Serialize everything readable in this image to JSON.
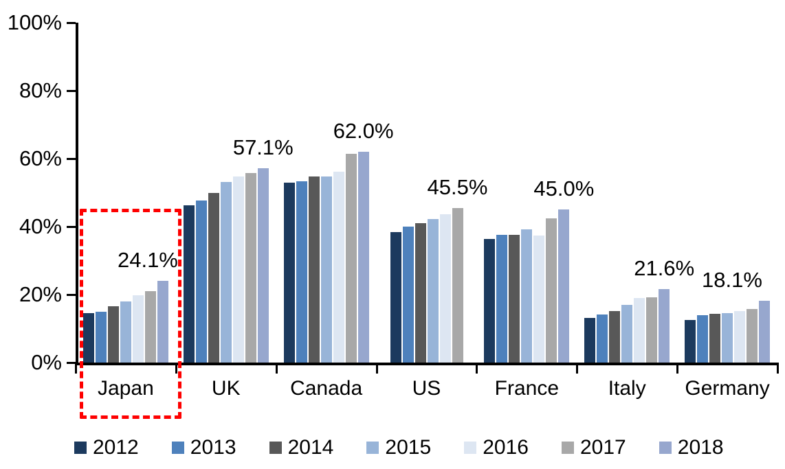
{
  "chart_data": {
    "type": "bar",
    "title": "",
    "xlabel": "",
    "ylabel": "",
    "ylim": [
      0,
      100
    ],
    "y_ticks": [
      "0%",
      "20%",
      "40%",
      "60%",
      "80%",
      "100%"
    ],
    "grid": false,
    "legend_position": "bottom",
    "categories": [
      "Japan",
      "UK",
      "Canada",
      "US",
      "France",
      "Italy",
      "Germany"
    ],
    "series": [
      {
        "name": "2012",
        "color": "#1C3A5E",
        "values": [
          14.6,
          46.2,
          53.0,
          38.4,
          36.4,
          13.2,
          12.5
        ]
      },
      {
        "name": "2013",
        "color": "#4E81BC",
        "values": [
          14.9,
          47.7,
          53.3,
          40.1,
          37.6,
          14.1,
          13.9
        ]
      },
      {
        "name": "2014",
        "color": "#585858",
        "values": [
          16.6,
          49.8,
          54.8,
          41.1,
          37.6,
          15.2,
          14.3
        ]
      },
      {
        "name": "2015",
        "color": "#98B4D8",
        "values": [
          17.9,
          53.1,
          54.7,
          42.2,
          39.2,
          16.9,
          14.6
        ]
      },
      {
        "name": "2016",
        "color": "#DDE6F2",
        "values": [
          19.8,
          54.8,
          56.2,
          43.7,
          37.4,
          18.9,
          15.2
        ]
      },
      {
        "name": "2017",
        "color": "#A8A8A8",
        "values": [
          21.0,
          55.7,
          61.5,
          45.5,
          42.4,
          19.1,
          15.8
        ]
      },
      {
        "name": "2018",
        "color": "#97A7CE",
        "values": [
          24.1,
          57.1,
          62.0,
          null,
          45.0,
          21.6,
          18.1
        ]
      }
    ],
    "callouts": [
      {
        "category": "Japan",
        "text": "24.1%"
      },
      {
        "category": "UK",
        "text": "57.1%"
      },
      {
        "category": "Canada",
        "text": "62.0%"
      },
      {
        "category": "US",
        "text": "45.5%"
      },
      {
        "category": "France",
        "text": "45.0%"
      },
      {
        "category": "Italy",
        "text": "21.6%"
      },
      {
        "category": "Germany",
        "text": "18.1%"
      }
    ],
    "highlight": {
      "category": "Japan",
      "shape": "dashed-rectangle",
      "color": "#FE0000"
    },
    "legend": [
      "2012",
      "2013",
      "2014",
      "2015",
      "2016",
      "2017",
      "2018"
    ]
  }
}
